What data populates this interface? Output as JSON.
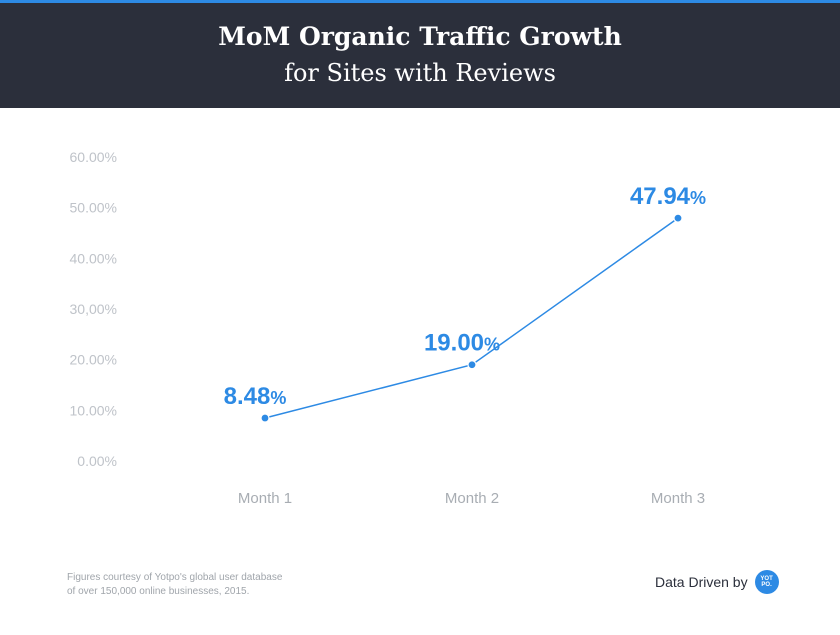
{
  "header": {
    "title": "MoM Organic Traffic Growth",
    "subtitle": "for Sites with Reviews"
  },
  "chart_data": {
    "type": "line",
    "title": "MoM Organic Traffic Growth",
    "subtitle": "for Sites with Reviews",
    "categories": [
      "Month 1",
      "Month 2",
      "Month 3"
    ],
    "series": [
      {
        "values": [
          8.48,
          19.0,
          47.94
        ]
      }
    ],
    "data_labels": [
      {
        "number": "8.48",
        "unit": "%"
      },
      {
        "number": "19.00",
        "unit": "%"
      },
      {
        "number": "47.94",
        "unit": "%"
      }
    ],
    "y_tick_values": [
      0,
      10,
      20,
      30,
      40,
      50,
      60
    ],
    "y_tick_labels": [
      "0.00%",
      "10.00%",
      "20.00%",
      "30,00%",
      "40.00%",
      "50.00%",
      "60.00%"
    ],
    "ylim": [
      0,
      60
    ],
    "xlabel": "",
    "ylabel": "",
    "grid": false,
    "legend": "none",
    "line_color": "#2d8ae4"
  },
  "footer": {
    "note_line1": "Figures courtesy of Yotpo's global user database",
    "note_line2": "of over 150,000 online businesses, 2015.",
    "brand_text": "Data Driven by",
    "logo_line1": "YOT",
    "logo_line2": "PO."
  }
}
